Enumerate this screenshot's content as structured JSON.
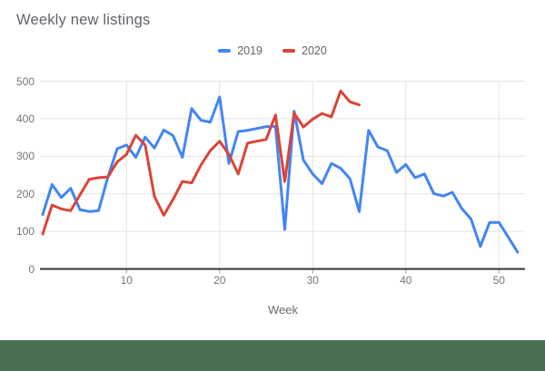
{
  "title": "Weekly new listings",
  "axes": {
    "x_title": "Week"
  },
  "chart_data": {
    "type": "line",
    "title": "Weekly new listings",
    "xlabel": "Week",
    "ylabel": "",
    "xlim": [
      1,
      52
    ],
    "ylim": [
      0,
      500
    ],
    "x_ticks": [
      10,
      20,
      30,
      40,
      50
    ],
    "y_ticks": [
      0,
      100,
      200,
      300,
      400,
      500
    ],
    "grid": true,
    "legend_position": "top-center",
    "x": [
      1,
      2,
      3,
      4,
      5,
      6,
      7,
      8,
      9,
      10,
      11,
      12,
      13,
      14,
      15,
      16,
      17,
      18,
      19,
      20,
      21,
      22,
      23,
      24,
      25,
      26,
      27,
      28,
      29,
      30,
      31,
      32,
      33,
      34,
      35,
      36,
      37,
      38,
      39,
      40,
      41,
      42,
      43,
      44,
      45,
      46,
      47,
      48,
      49,
      50,
      51,
      52
    ],
    "series": [
      {
        "name": "2019",
        "color": "#4285f4",
        "values": [
          145,
          225,
          190,
          215,
          158,
          153,
          155,
          245,
          320,
          330,
          297,
          351,
          322,
          370,
          355,
          297,
          427,
          396,
          391,
          458,
          281,
          366,
          369,
          374,
          379,
          380,
          105,
          420,
          290,
          253,
          227,
          281,
          268,
          240,
          153,
          369,
          325,
          315,
          257,
          278,
          243,
          253,
          201,
          194,
          204,
          161,
          133,
          60,
          124,
          124,
          85,
          45
        ]
      },
      {
        "name": "2020",
        "color": "#db4437",
        "values": [
          93,
          170,
          160,
          155,
          197,
          239,
          243,
          245,
          285,
          305,
          356,
          330,
          193,
          143,
          185,
          233,
          229,
          277,
          315,
          340,
          305,
          253,
          335,
          340,
          345,
          410,
          233,
          415,
          378,
          399,
          414,
          405,
          474,
          445,
          437
        ]
      }
    ]
  },
  "style": {
    "gridline_color": "#e3e3e3",
    "axis_line_color": "#333333",
    "footer_color": "#477150"
  }
}
